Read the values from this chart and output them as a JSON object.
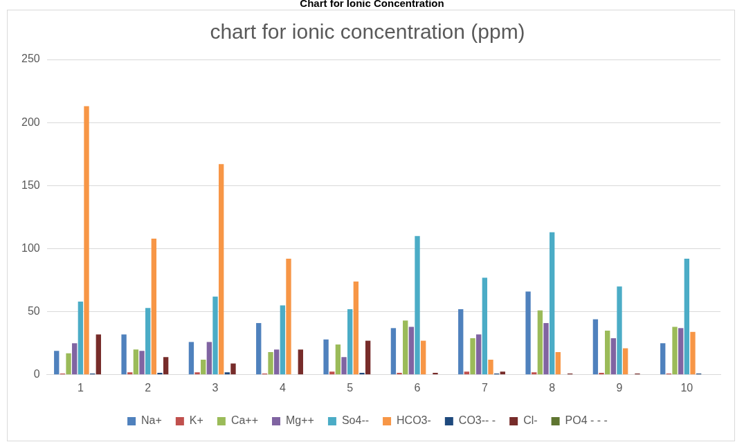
{
  "chart_data": {
    "type": "bar",
    "title": "Chart for Ionic Concentration",
    "subtitle": "chart for ionic concentration (ppm)",
    "categories": [
      "1",
      "2",
      "3",
      "4",
      "5",
      "6",
      "7",
      "8",
      "9",
      "10"
    ],
    "series": [
      {
        "name": "Na+",
        "color": "#4f81bd",
        "values": [
          19,
          32,
          26,
          41,
          28,
          37,
          52,
          66,
          44,
          25
        ]
      },
      {
        "name": "K+",
        "color": "#c0504d",
        "values": [
          1,
          2,
          2,
          1,
          2.5,
          1.5,
          2.5,
          2,
          1.5,
          1
        ]
      },
      {
        "name": "Ca++",
        "color": "#9bbb59",
        "values": [
          17,
          20,
          12,
          18,
          24,
          43,
          29,
          51,
          35,
          38
        ]
      },
      {
        "name": "Mg++",
        "color": "#8064a2",
        "values": [
          25,
          19,
          26,
          20,
          14,
          38,
          32,
          41,
          29,
          37
        ]
      },
      {
        "name": "So4--",
        "color": "#4bacc6",
        "values": [
          58,
          53,
          62,
          55,
          52,
          110,
          77,
          113,
          70,
          92
        ]
      },
      {
        "name": "HCO3-",
        "color": "#f79646",
        "values": [
          213,
          108,
          167,
          92,
          74,
          27,
          12,
          18,
          21,
          34
        ]
      },
      {
        "name": "CO3-- -",
        "color": "#1f497d",
        "values": [
          1,
          1.5,
          2,
          0,
          1.5,
          0,
          1,
          0,
          0,
          1
        ]
      },
      {
        "name": "Cl-",
        "color": "#772c2a",
        "values": [
          32,
          14,
          9,
          20,
          27,
          1.5,
          2.5,
          1,
          1,
          0
        ]
      },
      {
        "name": "PO4 - - -",
        "color": "#5f7530",
        "values": [
          0,
          0,
          0,
          0,
          0,
          0,
          0,
          0,
          0,
          0
        ]
      }
    ],
    "ylim": [
      0,
      250
    ],
    "yticks": [
      0,
      50,
      100,
      150,
      200,
      250
    ],
    "grid": "y",
    "legend": "bottom"
  }
}
